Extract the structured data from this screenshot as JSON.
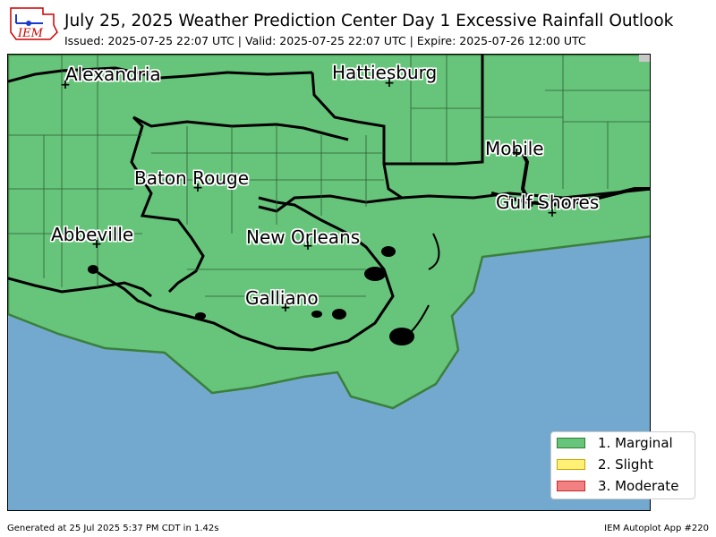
{
  "header": {
    "logo_text": "IEM",
    "title": "July 25, 2025 Weather Prediction Center Day 1 Excessive Rainfall Outlook",
    "subtitle": "Issued: 2025-07-25 22:07 UTC | Valid: 2025-07-25 22:07 UTC | Expire: 2025-07-26 12:00 UTC"
  },
  "map": {
    "ocean_color": "#74a9cf",
    "marginal_color": "#66c57a",
    "cities": [
      {
        "name": "Alexandria"
      },
      {
        "name": "Hattiesburg"
      },
      {
        "name": "Mobile"
      },
      {
        "name": "Baton Rouge"
      },
      {
        "name": "Gulf Shores"
      },
      {
        "name": "Abbeville"
      },
      {
        "name": "New Orleans"
      },
      {
        "name": "Galliano"
      }
    ]
  },
  "legend": {
    "items": [
      {
        "label": "1. Marginal",
        "color": "#66c57a",
        "border": "#2e7d32"
      },
      {
        "label": "2. Slight",
        "color": "#fff176",
        "border": "#c8a400"
      },
      {
        "label": "3. Moderate",
        "color": "#f28080",
        "border": "#c62828"
      }
    ]
  },
  "footer": {
    "generated": "Generated at 25 Jul 2025 5:37 PM CDT in 1.42s",
    "app": "IEM Autoplot App #220"
  }
}
